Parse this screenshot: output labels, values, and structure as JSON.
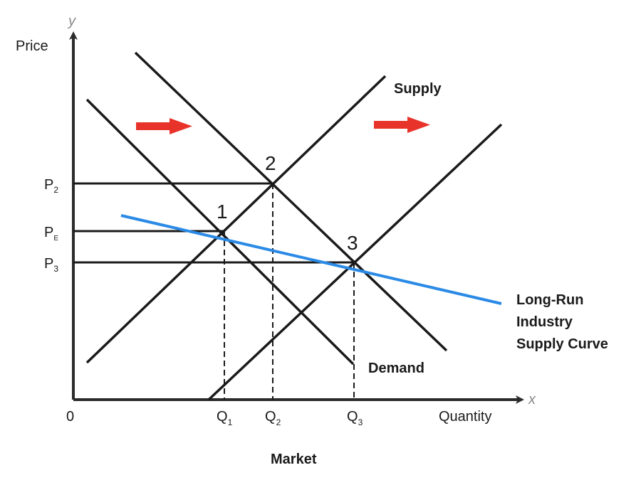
{
  "axes": {
    "y_letter": "y",
    "x_letter": "x",
    "y_label": "Price",
    "x_label": "Quantity",
    "origin": "0"
  },
  "price_labels": [
    {
      "main": "P",
      "sub": "2"
    },
    {
      "main": "P",
      "sub": "E"
    },
    {
      "main": "P",
      "sub": "3"
    }
  ],
  "quantity_labels": [
    {
      "main": "Q",
      "sub": "1"
    },
    {
      "main": "Q",
      "sub": "2"
    },
    {
      "main": "Q",
      "sub": "3"
    }
  ],
  "points": [
    "1",
    "2",
    "3"
  ],
  "curves": {
    "supply": "Supply",
    "demand": "Demand",
    "long_run": [
      "Long-Run",
      "Industry",
      "Supply Curve"
    ]
  },
  "caption": "Market",
  "colors": {
    "curve": "#1a1a1a",
    "long_run": "#2a8ae6",
    "arrow": "#e8332a"
  },
  "icons": [
    "right-arrow-icon",
    "right-arrow-icon"
  ]
}
